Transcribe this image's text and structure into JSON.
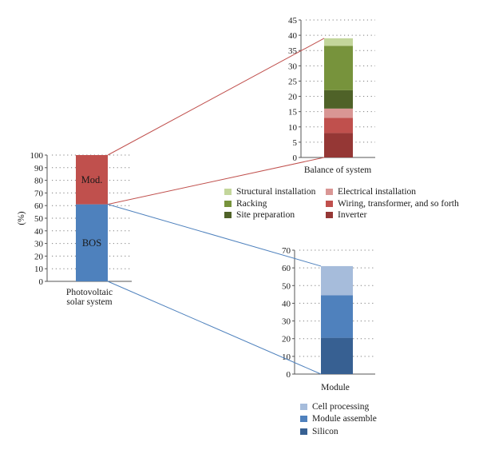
{
  "chart_data": [
    {
      "id": "pv",
      "type": "bar",
      "stacked": true,
      "ylabel": "(%)",
      "xlabel": "",
      "categories": [
        "Photovoltaic solar system"
      ],
      "category_label_lines": [
        "Photovoltaic",
        "solar system"
      ],
      "ylim": [
        0,
        100
      ],
      "yticks": [
        0,
        10,
        20,
        30,
        40,
        50,
        60,
        70,
        80,
        90,
        100
      ],
      "grid": true,
      "series": [
        {
          "name": "BOS",
          "values": [
            61
          ],
          "color": "#4e81bd"
        },
        {
          "name": "Mod.",
          "values": [
            39
          ],
          "color": "#c0504d"
        }
      ]
    },
    {
      "id": "bos",
      "type": "bar",
      "stacked": true,
      "xlabel": "Balance of system",
      "ylabel": "",
      "categories": [
        "Balance of system"
      ],
      "ylim": [
        0,
        45
      ],
      "yticks": [
        0,
        5,
        10,
        15,
        20,
        25,
        30,
        35,
        40,
        45
      ],
      "grid": true,
      "legend_position": "bottom",
      "series": [
        {
          "name": "Inverter",
          "values": [
            8
          ],
          "color": "#953735"
        },
        {
          "name": "Wiring, transformer, and so forth",
          "values": [
            5
          ],
          "color": "#c0504d"
        },
        {
          "name": "Electrical installation",
          "values": [
            3
          ],
          "color": "#d99694"
        },
        {
          "name": "Site preparation",
          "values": [
            6
          ],
          "color": "#4f6228"
        },
        {
          "name": "Racking",
          "values": [
            14.5
          ],
          "color": "#77933c"
        },
        {
          "name": "Structural installation",
          "values": [
            2.5
          ],
          "color": "#c3d69b"
        }
      ],
      "legend_order": [
        "Structural installation",
        "Electrical installation",
        "Racking",
        "Wiring, transformer, and so forth",
        "Site preparation",
        "Inverter"
      ]
    },
    {
      "id": "module",
      "type": "bar",
      "stacked": true,
      "xlabel": "Module",
      "ylabel": "",
      "categories": [
        "Module"
      ],
      "ylim": [
        0,
        70
      ],
      "yticks": [
        0,
        10,
        20,
        30,
        40,
        50,
        60,
        70
      ],
      "grid": true,
      "legend_position": "bottom",
      "series": [
        {
          "name": "Silicon",
          "values": [
            20.5
          ],
          "color": "#376092"
        },
        {
          "name": "Module assemble",
          "values": [
            24
          ],
          "color": "#4f81bd"
        },
        {
          "name": "Cell processing",
          "values": [
            16.5
          ],
          "color": "#a6bcdb"
        }
      ],
      "legend_order": [
        "Cell processing",
        "Module assemble",
        "Silicon"
      ]
    }
  ],
  "connector_colors": {
    "module_link": "#c0504d",
    "bos_link": "#4e81bd"
  }
}
